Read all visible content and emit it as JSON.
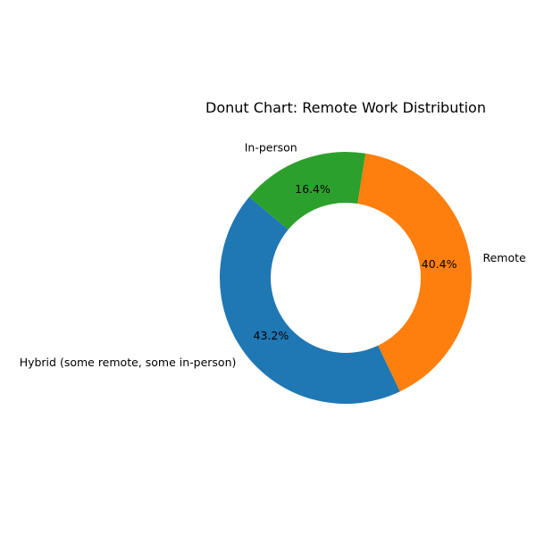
{
  "chart_data": {
    "type": "pie",
    "subtype": "donut",
    "title": "Donut Chart: Remote Work Distribution",
    "start_angle_deg": 140,
    "direction": "counterclockwise",
    "slices": [
      {
        "label": "Hybrid (some remote, some in-person)",
        "value": 43.2,
        "pct_label": "43.2%",
        "color": "#1f77b4"
      },
      {
        "label": "Remote",
        "value": 40.4,
        "pct_label": "40.4%",
        "color": "#ff7f0e"
      },
      {
        "label": "In-person",
        "value": 16.4,
        "pct_label": "16.4%",
        "color": "#2ca02c"
      }
    ],
    "legend": "none"
  }
}
